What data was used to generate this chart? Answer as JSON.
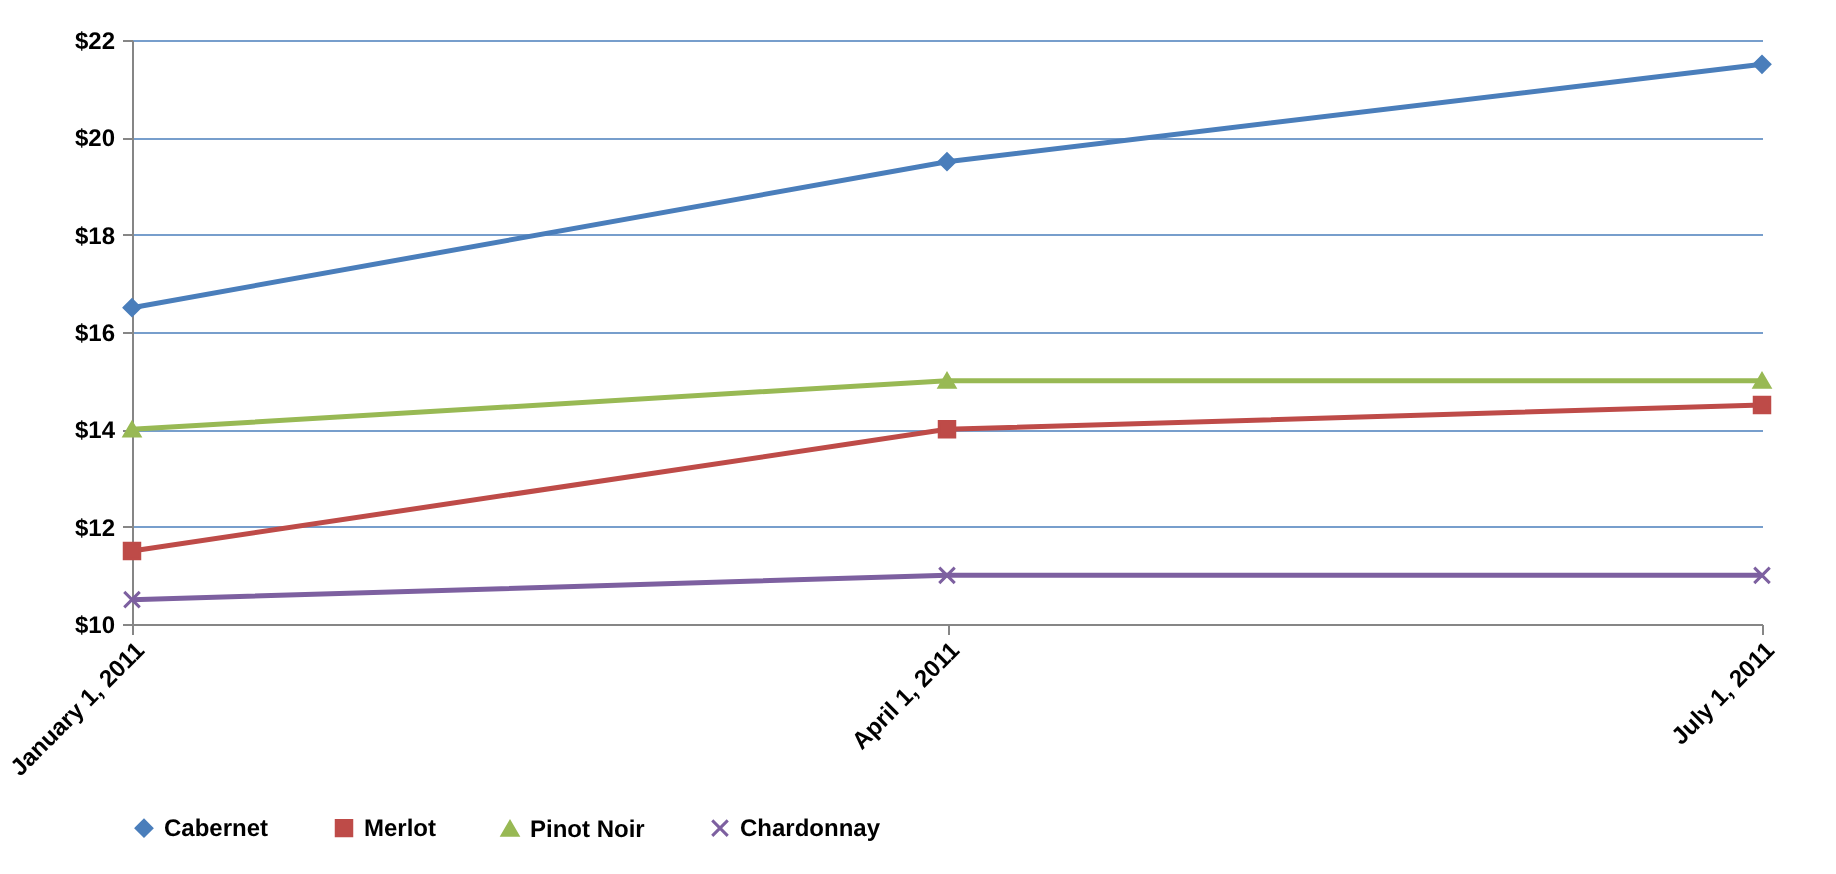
{
  "chart_data": {
    "type": "line",
    "categories": [
      "January 1, 2011",
      "April 1, 2011",
      "July 1, 2011"
    ],
    "series": [
      {
        "name": "Cabernet",
        "color": "#4a7ebb",
        "marker": "diamond",
        "values": [
          16.5,
          19.5,
          21.5
        ]
      },
      {
        "name": "Merlot",
        "color": "#be4b48",
        "marker": "square",
        "values": [
          11.5,
          14,
          14.5
        ]
      },
      {
        "name": "Pinot Noir",
        "color": "#98b954",
        "marker": "triangle",
        "values": [
          14,
          15,
          15
        ]
      },
      {
        "name": "Chardonnay",
        "color": "#7d60a0",
        "marker": "cross",
        "values": [
          10.5,
          11,
          11
        ]
      }
    ],
    "ylim": [
      10,
      22
    ],
    "yticks": [
      {
        "value": 10,
        "label": "$10"
      },
      {
        "value": 12,
        "label": "$12"
      },
      {
        "value": 14,
        "label": "$14"
      },
      {
        "value": 16,
        "label": "$16"
      },
      {
        "value": 18,
        "label": "$18"
      },
      {
        "value": 20,
        "label": "$20"
      },
      {
        "value": 22,
        "label": "$22"
      }
    ],
    "grid": "y",
    "legend": "bottom",
    "line_style": "solid"
  }
}
